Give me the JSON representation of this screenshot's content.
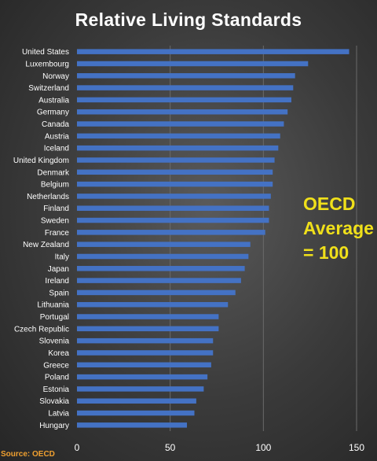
{
  "chart_data": {
    "type": "bar",
    "orientation": "horizontal",
    "title": "Relative Living Standards",
    "categories": [
      "United States",
      "Luxembourg",
      "Norway",
      "Switzerland",
      "Australia",
      "Germany",
      "Canada",
      "Austria",
      "Iceland",
      "United Kingdom",
      "Denmark",
      "Belgium",
      "Netherlands",
      "Finland",
      "Sweden",
      "France",
      "New Zealand",
      "Italy",
      "Japan",
      "Ireland",
      "Spain",
      "Lithuania",
      "Portugal",
      "Czech Republic",
      "Slovenia",
      "Korea",
      "Greece",
      "Poland",
      "Estonia",
      "Slovakia",
      "Latvia",
      "Hungary"
    ],
    "values": [
      146,
      124,
      117,
      116,
      115,
      113,
      111,
      109,
      108,
      106,
      105,
      105,
      104,
      103,
      103,
      101,
      93,
      92,
      90,
      88,
      85,
      81,
      76,
      76,
      73,
      73,
      72,
      70,
      68,
      64,
      63,
      59
    ],
    "xlim": [
      0,
      150
    ],
    "xticks": [
      0,
      50,
      100,
      150
    ],
    "grid": true,
    "bar_color": "#4472c4",
    "annotation_lines": [
      "OECD",
      "Average",
      "= 100"
    ],
    "annotation_color": "#f0e01a",
    "source": "Source: OECD"
  }
}
